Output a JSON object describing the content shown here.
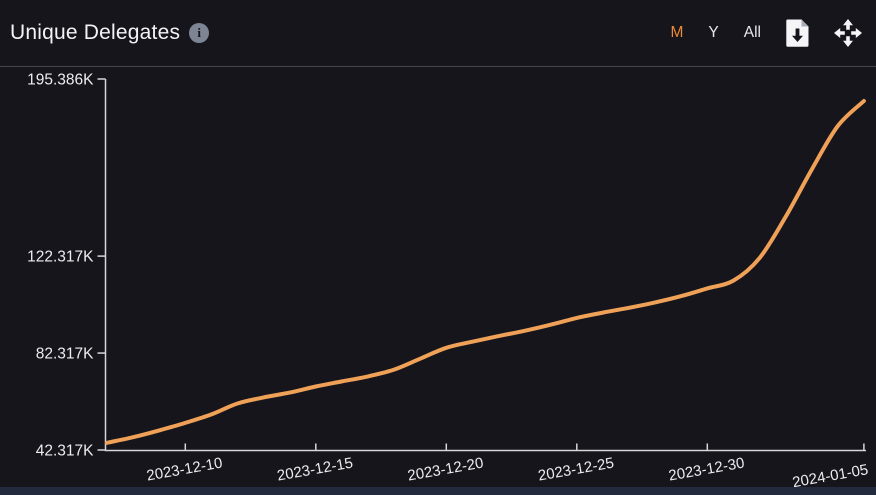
{
  "panel": {
    "background": "#15151b",
    "separator_color": "#45454d",
    "bottom_strip_color": "#222a3e"
  },
  "header": {
    "title": "Unique Delegates",
    "info_glyph": "i",
    "range_buttons": [
      {
        "label": "M",
        "active": true
      },
      {
        "label": "Y",
        "active": false
      },
      {
        "label": "All",
        "active": false
      }
    ],
    "active_color": "#ed8a39",
    "inactive_color": "#e8e8ea",
    "download_icon": "download-file",
    "move_icon": "move-pan"
  },
  "chart_data": {
    "type": "line",
    "title": "Unique Delegates",
    "series_name": "Unique Delegates",
    "line_color": "#f0a158",
    "line_width": 4,
    "axis_color": "#d6d6da",
    "label_color": "#ecedef",
    "grid": false,
    "legend": false,
    "x_label_rotation": -10,
    "y_axis": {
      "min": 42317,
      "max": 195386,
      "ticks": [
        {
          "label": "42.317K",
          "value": 42317
        },
        {
          "label": "82.317K",
          "value": 82317
        },
        {
          "label": "122.317K",
          "value": 122317
        },
        {
          "label": "195.386K",
          "value": 195386
        }
      ]
    },
    "x_axis": {
      "tick_labels": [
        "2023-12-10",
        "2023-12-15",
        "2023-12-20",
        "2023-12-25",
        "2023-12-30",
        "2024-01-05"
      ]
    },
    "x": [
      "2023-12-07",
      "2023-12-08",
      "2023-12-09",
      "2023-12-10",
      "2023-12-11",
      "2023-12-12",
      "2023-12-13",
      "2023-12-14",
      "2023-12-15",
      "2023-12-16",
      "2023-12-17",
      "2023-12-18",
      "2023-12-19",
      "2023-12-20",
      "2023-12-21",
      "2023-12-22",
      "2023-12-23",
      "2023-12-24",
      "2023-12-25",
      "2023-12-26",
      "2023-12-27",
      "2023-12-28",
      "2023-12-29",
      "2023-12-30",
      "2023-12-31",
      "2024-01-01",
      "2024-01-02",
      "2024-01-03",
      "2024-01-04",
      "2024-01-05"
    ],
    "values": [
      45300,
      47600,
      50400,
      53500,
      57000,
      61500,
      64000,
      66000,
      68500,
      70600,
      72700,
      75500,
      80000,
      84500,
      87000,
      89300,
      91500,
      94000,
      96800,
      99000,
      101000,
      103200,
      105800,
      109000,
      112200,
      121500,
      138500,
      158000,
      176000,
      186300
    ]
  }
}
